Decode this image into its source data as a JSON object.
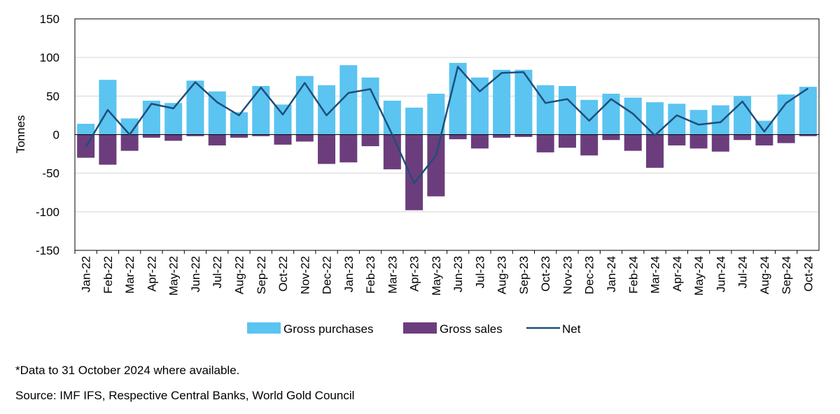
{
  "footnote": "*Data to 31 October 2024 where available.",
  "source": "Source: IMF IFS, Respective Central Banks, World Gold Council",
  "chart_data": {
    "type": "bar",
    "title": "",
    "xlabel": "",
    "ylabel": "Tonnes",
    "ylim": [
      -150,
      150
    ],
    "yticks": [
      150,
      100,
      50,
      0,
      -50,
      -100,
      -150
    ],
    "grid": true,
    "legend_position": "bottom",
    "categories": [
      "Jan-22",
      "Feb-22",
      "Mar-22",
      "Apr-22",
      "May-22",
      "Jun-22",
      "Jul-22",
      "Aug-22",
      "Sep-22",
      "Oct-22",
      "Nov-22",
      "Dec-22",
      "Jan-23",
      "Feb-23",
      "Mar-23",
      "Apr-23",
      "May-23",
      "Jun-23",
      "Jul-23",
      "Aug-23",
      "Sep-23",
      "Oct-23",
      "Nov-23",
      "Dec-23",
      "Jan-24",
      "Feb-24",
      "Mar-24",
      "Apr-24",
      "May-24",
      "Jun-24",
      "Jul-24",
      "Aug-24",
      "Sep-24",
      "Oct-24"
    ],
    "series": [
      {
        "name": "Gross purchases",
        "type": "bar",
        "color": "#5bc4f1",
        "values": [
          14,
          71,
          21,
          44,
          41,
          70,
          56,
          29,
          63,
          39,
          76,
          64,
          90,
          74,
          44,
          35,
          53,
          93,
          74,
          84,
          84,
          64,
          63,
          45,
          53,
          48,
          42,
          40,
          32,
          38,
          50,
          18,
          52,
          62
        ]
      },
      {
        "name": "Gross sales",
        "type": "bar",
        "color": "#6c3d7d",
        "values": [
          -30,
          -39,
          -21,
          -4,
          -8,
          -2,
          -14,
          -4,
          -2,
          -13,
          -9,
          -38,
          -36,
          -15,
          -45,
          -98,
          -80,
          -6,
          -18,
          -4,
          -3,
          -23,
          -17,
          -27,
          -7,
          -21,
          -43,
          -14,
          -18,
          -22,
          -7,
          -14,
          -11,
          -2
        ]
      },
      {
        "name": "Net",
        "type": "line",
        "color": "#1f4e79",
        "values": [
          -16,
          32,
          0,
          40,
          34,
          68,
          42,
          25,
          61,
          26,
          67,
          25,
          54,
          59,
          0,
          -63,
          -27,
          88,
          56,
          80,
          81,
          41,
          46,
          18,
          46,
          27,
          -1,
          25,
          13,
          16,
          43,
          4,
          41,
          60
        ]
      }
    ]
  }
}
